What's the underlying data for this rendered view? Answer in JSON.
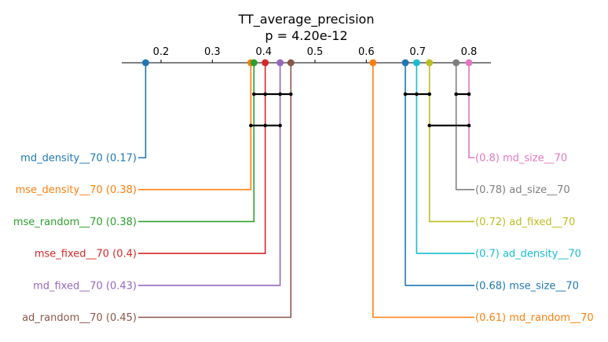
{
  "chart_data": {
    "type": "critical-difference",
    "title": "TT_average_precision",
    "subtitle": "p = 4.20e-12",
    "axis": {
      "ticks": [
        0.2,
        0.3,
        0.4,
        0.5,
        0.6,
        0.7,
        0.8
      ],
      "tick_labels": [
        "0.2",
        "0.3",
        "0.4",
        "0.5",
        "0.6",
        "0.7",
        "0.8"
      ],
      "range": [
        0.127,
        0.84
      ]
    },
    "methods": [
      {
        "name": "md_density__70",
        "value": 0.17,
        "value_label": "0.17",
        "side": "left",
        "color": "#1f77b4"
      },
      {
        "name": "mse_density__70",
        "value": 0.375,
        "value_label": "0.38",
        "side": "left",
        "color": "#ff7f0e"
      },
      {
        "name": "mse_random__70",
        "value": 0.381,
        "value_label": "0.38",
        "side": "left",
        "color": "#2ca02c"
      },
      {
        "name": "mse_fixed__70",
        "value": 0.403,
        "value_label": "0.4",
        "side": "left",
        "color": "#d62728"
      },
      {
        "name": "md_fixed__70",
        "value": 0.432,
        "value_label": "0.43",
        "side": "left",
        "color": "#9467bd"
      },
      {
        "name": "ad_random__70",
        "value": 0.453,
        "value_label": "0.45",
        "side": "left",
        "color": "#8c564b"
      },
      {
        "name": "md_size__70",
        "value": 0.8,
        "value_label": "0.8",
        "side": "right",
        "color": "#e377c2"
      },
      {
        "name": "ad_size__70",
        "value": 0.775,
        "value_label": "0.78",
        "side": "right",
        "color": "#7f7f7f"
      },
      {
        "name": "ad_fixed__70",
        "value": 0.723,
        "value_label": "0.72",
        "side": "right",
        "color": "#bcbd22"
      },
      {
        "name": "ad_density__70",
        "value": 0.698,
        "value_label": "0.7",
        "side": "right",
        "color": "#17becf"
      },
      {
        "name": "mse_size__70",
        "value": 0.676,
        "value_label": "0.68",
        "side": "right",
        "color": "#1f77b4"
      },
      {
        "name": "md_random__70",
        "value": 0.613,
        "value_label": "0.61",
        "side": "right",
        "color": "#ff7f0e"
      }
    ],
    "cliques": [
      {
        "from": 0.381,
        "to": 0.453,
        "points": [
          0.381,
          0.403,
          0.432,
          0.453
        ]
      },
      {
        "from": 0.375,
        "to": 0.432,
        "points": [
          0.375,
          0.403,
          0.432
        ]
      },
      {
        "from": 0.676,
        "to": 0.723,
        "points": [
          0.676,
          0.698,
          0.723
        ]
      },
      {
        "from": 0.775,
        "to": 0.8,
        "points": [
          0.775,
          0.8
        ]
      },
      {
        "from": 0.723,
        "to": 0.8,
        "points": [
          0.723,
          0.8
        ]
      }
    ]
  }
}
